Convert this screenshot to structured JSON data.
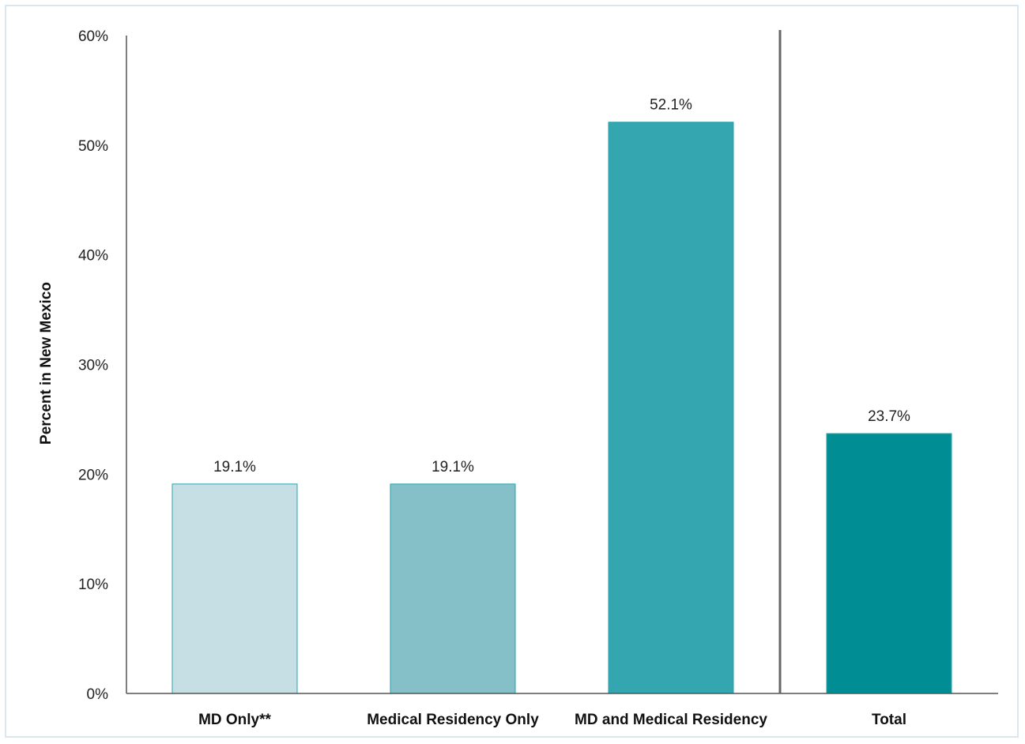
{
  "chart_data": {
    "type": "bar",
    "categories": [
      "MD Only**",
      "Medical Residency Only",
      "MD and Medical Residency",
      "Total"
    ],
    "values": [
      19.1,
      19.1,
      52.1,
      23.7
    ],
    "data_labels": [
      "19.1%",
      "19.1%",
      "52.1%",
      "23.7%"
    ],
    "colors": [
      "#c5dfe4",
      "#85bfc8",
      "#34a6b0",
      "#008e94"
    ],
    "title": "",
    "xlabel": "",
    "ylabel": "Percent in New Mexico",
    "ylim": [
      0,
      60
    ],
    "yticks": [
      0,
      10,
      20,
      30,
      40,
      50,
      60
    ],
    "ytick_labels": [
      "0%",
      "10%",
      "20%",
      "30%",
      "40%",
      "50%",
      "60%"
    ],
    "grid": false,
    "legend": "none",
    "separator_before_category": "Total"
  }
}
